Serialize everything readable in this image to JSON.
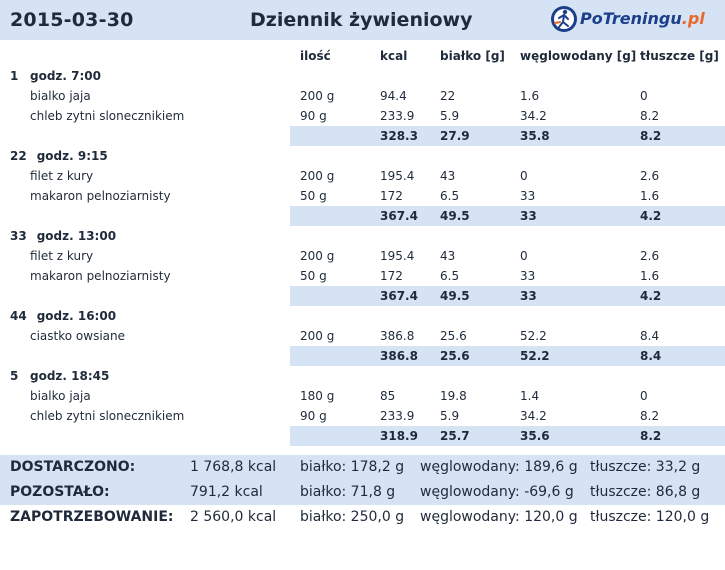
{
  "header": {
    "date": "2015-03-30",
    "title": "Dziennik żywieniowy",
    "logo_main": "PoTreningu",
    "logo_tld": ".pl"
  },
  "columns": {
    "qty": "ilość",
    "kcal": "kcal",
    "protein": "białko [g]",
    "carbs": "węglowodany [g]",
    "fat": "tłuszcze [g]"
  },
  "meals": [
    {
      "num": "1",
      "time": "godz. 7:00",
      "items": [
        {
          "name": "bialko jaja",
          "qty": "200 g",
          "kcal": "94.4",
          "protein": "22",
          "carbs": "1.6",
          "fat": "0"
        },
        {
          "name": "chleb zytni slonecznikiem",
          "qty": "90 g",
          "kcal": "233.9",
          "protein": "5.9",
          "carbs": "34.2",
          "fat": "8.2"
        }
      ],
      "sum": {
        "kcal": "328.3",
        "protein": "27.9",
        "carbs": "35.8",
        "fat": "8.2"
      }
    },
    {
      "num": "22",
      "time": "godz. 9:15",
      "items": [
        {
          "name": "filet z kury",
          "qty": "200 g",
          "kcal": "195.4",
          "protein": "43",
          "carbs": "0",
          "fat": "2.6"
        },
        {
          "name": "makaron pelnoziarnisty",
          "qty": "50 g",
          "kcal": "172",
          "protein": "6.5",
          "carbs": "33",
          "fat": "1.6"
        }
      ],
      "sum": {
        "kcal": "367.4",
        "protein": "49.5",
        "carbs": "33",
        "fat": "4.2"
      }
    },
    {
      "num": "33",
      "time": "godz. 13:00",
      "items": [
        {
          "name": "filet z kury",
          "qty": "200 g",
          "kcal": "195.4",
          "protein": "43",
          "carbs": "0",
          "fat": "2.6"
        },
        {
          "name": "makaron pelnoziarnisty",
          "qty": "50 g",
          "kcal": "172",
          "protein": "6.5",
          "carbs": "33",
          "fat": "1.6"
        }
      ],
      "sum": {
        "kcal": "367.4",
        "protein": "49.5",
        "carbs": "33",
        "fat": "4.2"
      }
    },
    {
      "num": "44",
      "time": "godz. 16:00",
      "items": [
        {
          "name": "ciastko owsiane",
          "qty": "200 g",
          "kcal": "386.8",
          "protein": "25.6",
          "carbs": "52.2",
          "fat": "8.4"
        }
      ],
      "sum": {
        "kcal": "386.8",
        "protein": "25.6",
        "carbs": "52.2",
        "fat": "8.4"
      }
    },
    {
      "num": "5",
      "time": "godz. 18:45",
      "items": [
        {
          "name": "bialko jaja",
          "qty": "180 g",
          "kcal": "85",
          "protein": "19.8",
          "carbs": "1.4",
          "fat": "0"
        },
        {
          "name": "chleb zytni slonecznikiem",
          "qty": "90 g",
          "kcal": "233.9",
          "protein": "5.9",
          "carbs": "34.2",
          "fat": "8.2"
        }
      ],
      "sum": {
        "kcal": "318.9",
        "protein": "25.7",
        "carbs": "35.6",
        "fat": "8.2"
      }
    }
  ],
  "totals": [
    {
      "label": "DOSTARCZONO:",
      "kcal": "1 768,8 kcal",
      "protein": "białko: 178,2 g",
      "carbs": "węglowodany: 189,6 g",
      "fat": "tłuszcze: 33,2 g"
    },
    {
      "label": "POZOSTAŁO:",
      "kcal": "791,2 kcal",
      "protein": "białko: 71,8 g",
      "carbs": "węglowodany: -69,6 g",
      "fat": "tłuszcze: 86,8 g"
    },
    {
      "label": "ZAPOTRZEBOWANIE:",
      "kcal": "2 560,0 kcal",
      "protein": "białko: 250,0 g",
      "carbs": "węglowodany: 120,0 g",
      "fat": "tłuszcze: 120,0 g"
    }
  ]
}
